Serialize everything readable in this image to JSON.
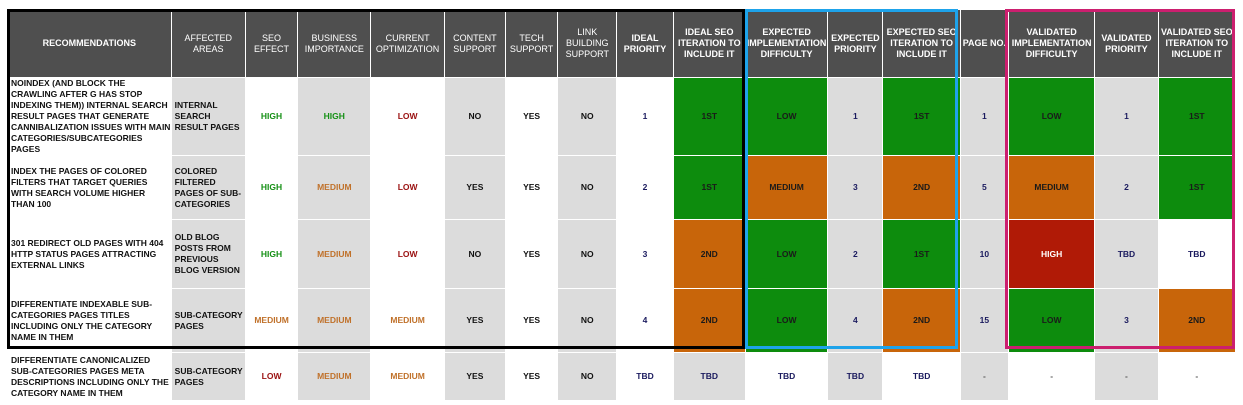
{
  "headers": {
    "recommendations": "RECOMMENDATIONS",
    "affected_areas": "AFFECTED AREAS",
    "seo_effect": "SEO EFFECT",
    "business_importance": "BUSINESS IMPORTANCE",
    "current_optimization": "CURRENT OPTIMIZATION",
    "content_support": "CONTENT SUPPORT",
    "tech_support": "TECH SUPPORT",
    "link_building_support": "LINK BUILDING SUPPORT",
    "ideal_priority": "IDEAL PRIORITY",
    "ideal_seo_iteration": "IDEAL SEO ITERATION TO INCLUDE IT",
    "expected_impl_difficulty": "EXPECTED IMPLEMENTATION DIFFICULTY",
    "expected_priority": "EXPECTED PRIORITY",
    "expected_seo_iteration": "EXPECTED SEO ITERATION TO INCLUDE IT",
    "page_no": "PAGE NO.",
    "validated_impl_difficulty": "VALIDATED IMPLEMENTATION DIFFICULTY",
    "validated_priority": "VALIDATED PRIORITY",
    "validated_seo_iteration": "VALIDATED SEO ITERATION TO INCLUDE IT"
  },
  "rows": [
    {
      "recommendation": "NOINDEX (AND BLOCK THE CRAWLING AFTER G HAS STOP INDEXING THEM)) INTERNAL SEARCH RESULT PAGES THAT GENERATE CANNIBALIZATION ISSUES WITH MAIN CATEGORIES/SUBCATEGORIES PAGES",
      "affected_areas": "INTERNAL SEARCH RESULT PAGES",
      "seo_effect": "HIGH",
      "business_importance": "HIGH",
      "current_optimization": "LOW",
      "content_support": "NO",
      "tech_support": "YES",
      "link_building_support": "NO",
      "ideal_priority": "1",
      "ideal_seo_iteration": "1ST",
      "expected_impl_difficulty": "LOW",
      "expected_priority": "1",
      "expected_seo_iteration": "1ST",
      "page_no": "1",
      "validated_impl_difficulty": "LOW",
      "validated_priority": "1",
      "validated_seo_iteration": "1ST"
    },
    {
      "recommendation": "INDEX THE PAGES OF COLORED FILTERS THAT TARGET QUERIES WITH SEARCH VOLUME HIGHER THAN 100",
      "affected_areas": "COLORED FILTERED PAGES OF SUB-CATEGORIES",
      "seo_effect": "HIGH",
      "business_importance": "MEDIUM",
      "current_optimization": "LOW",
      "content_support": "YES",
      "tech_support": "YES",
      "link_building_support": "NO",
      "ideal_priority": "2",
      "ideal_seo_iteration": "1ST",
      "expected_impl_difficulty": "MEDIUM",
      "expected_priority": "3",
      "expected_seo_iteration": "2ND",
      "page_no": "5",
      "validated_impl_difficulty": "MEDIUM",
      "validated_priority": "2",
      "validated_seo_iteration": "1ST"
    },
    {
      "recommendation": "301 REDIRECT OLD PAGES WITH 404 HTTP STATUS PAGES ATTRACTING EXTERNAL LINKS",
      "affected_areas": "OLD BLOG POSTS FROM PREVIOUS BLOG VERSION",
      "seo_effect": "HIGH",
      "business_importance": "MEDIUM",
      "current_optimization": "LOW",
      "content_support": "NO",
      "tech_support": "YES",
      "link_building_support": "NO",
      "ideal_priority": "3",
      "ideal_seo_iteration": "2ND",
      "expected_impl_difficulty": "LOW",
      "expected_priority": "2",
      "expected_seo_iteration": "1ST",
      "page_no": "10",
      "validated_impl_difficulty": "HIGH",
      "validated_priority": "TBD",
      "validated_seo_iteration": "TBD"
    },
    {
      "recommendation": "DIFFERENTIATE INDEXABLE SUB-CATEGORIES PAGES TITLES INCLUDING ONLY THE CATEGORY NAME IN THEM",
      "affected_areas": "SUB-CATEGORY PAGES",
      "seo_effect": "MEDIUM",
      "business_importance": "MEDIUM",
      "current_optimization": "MEDIUM",
      "content_support": "YES",
      "tech_support": "YES",
      "link_building_support": "NO",
      "ideal_priority": "4",
      "ideal_seo_iteration": "2ND",
      "expected_impl_difficulty": "LOW",
      "expected_priority": "4",
      "expected_seo_iteration": "2ND",
      "page_no": "15",
      "validated_impl_difficulty": "LOW",
      "validated_priority": "3",
      "validated_seo_iteration": "2ND"
    },
    {
      "recommendation": "DIFFERENTIATE CANONICALIZED SUB-CATEGORIES PAGES META DESCRIPTIONS INCLUDING ONLY THE CATEGORY NAME IN THEM",
      "affected_areas": "SUB-CATEGORY PAGES",
      "seo_effect": "LOW",
      "business_importance": "MEDIUM",
      "current_optimization": "MEDIUM",
      "content_support": "YES",
      "tech_support": "YES",
      "link_building_support": "NO",
      "ideal_priority": "TBD",
      "ideal_seo_iteration": "TBD",
      "expected_impl_difficulty": "TBD",
      "expected_priority": "TBD",
      "expected_seo_iteration": "TBD",
      "page_no": "-",
      "validated_impl_difficulty": "-",
      "validated_priority": "-",
      "validated_seo_iteration": "-"
    }
  ],
  "colors": {
    "header_bg": "#4f4f4f",
    "green_fill": "#0d8c0d",
    "orange_fill": "#c8650a",
    "red_fill": "#b01a06",
    "gray_fill": "#dcdcdc",
    "box_black": "#000000",
    "box_blue": "#1ea3ea",
    "box_pink": "#cc1f6f"
  }
}
